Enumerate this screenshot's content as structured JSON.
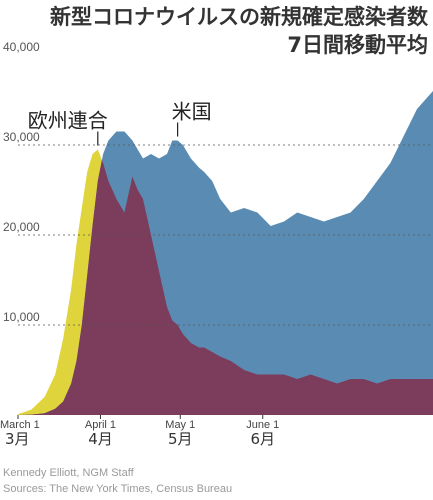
{
  "colors": {
    "eu": "#e0d43c",
    "us": "#5a8cb3",
    "overlap": "#7c3c5c",
    "grid": "#555555"
  },
  "chart_data": {
    "type": "area",
    "title_lines": [
      "新型コロナウイルスの新規確定感染者数",
      "7日間移動平均"
    ],
    "y_ticks": [
      {
        "value": 10000,
        "label": "10,000"
      },
      {
        "value": 20000,
        "label": "20,000"
      },
      {
        "value": 30000,
        "label": "30,000"
      },
      {
        "value": 40000,
        "label": "40,000"
      }
    ],
    "ylim": [
      0,
      40000
    ],
    "xlim_days": [
      0,
      156
    ],
    "x_ticks": [
      {
        "day": 0,
        "label_en": "March 1",
        "label_jp": "3月"
      },
      {
        "day": 31,
        "label_en": "April 1",
        "label_jp": "4月"
      },
      {
        "day": 61,
        "label_en": "May 1",
        "label_jp": "5月"
      },
      {
        "day": 92,
        "label_en": "June 1",
        "label_jp": "6月"
      }
    ],
    "x_axis_note": "x values are days since March 1",
    "series": [
      {
        "name": "欧州連合",
        "label": "欧州連合",
        "color_key": "eu",
        "x": [
          0,
          5,
          10,
          14,
          17,
          20,
          22,
          24,
          26,
          28,
          30,
          32,
          34,
          37,
          40,
          43,
          45,
          47,
          50,
          53,
          56,
          58,
          60,
          62,
          65,
          68,
          70,
          73,
          76,
          80,
          85,
          90,
          95,
          100,
          105,
          110,
          115,
          120,
          125,
          130,
          135,
          140,
          145,
          150,
          156
        ],
        "y": [
          100,
          600,
          2000,
          4500,
          8500,
          14000,
          19000,
          23000,
          27000,
          29000,
          29500,
          28000,
          26000,
          24000,
          22500,
          26500,
          25000,
          24000,
          20000,
          16000,
          12000,
          10500,
          10000,
          9000,
          8000,
          7500,
          7500,
          7000,
          6500,
          6000,
          5000,
          4500,
          4500,
          4500,
          4000,
          4500,
          4000,
          3500,
          4000,
          4000,
          3500,
          4000,
          4000,
          4000,
          4000
        ]
      },
      {
        "name": "米国",
        "label": "米国",
        "color_key": "us",
        "x": [
          0,
          5,
          10,
          14,
          17,
          20,
          22,
          24,
          26,
          28,
          30,
          32,
          34,
          37,
          40,
          43,
          45,
          47,
          50,
          53,
          56,
          58,
          60,
          62,
          65,
          68,
          70,
          73,
          76,
          80,
          85,
          90,
          95,
          100,
          105,
          110,
          115,
          120,
          125,
          130,
          135,
          140,
          145,
          150,
          156
        ],
        "y": [
          0,
          50,
          200,
          700,
          1500,
          3500,
          6000,
          10000,
          15500,
          21000,
          26000,
          29000,
          30500,
          31500,
          31500,
          30500,
          29500,
          28500,
          29000,
          28500,
          29000,
          30500,
          30500,
          30000,
          28500,
          27500,
          27000,
          26000,
          24000,
          22500,
          23000,
          22500,
          21000,
          21500,
          22500,
          22000,
          21500,
          22000,
          22500,
          24000,
          26000,
          28000,
          31000,
          34000,
          36000
        ]
      }
    ],
    "credits": [
      "Kennedy Elliott, NGM Staff",
      "Sources: The New York Times, Census Bureau"
    ]
  }
}
